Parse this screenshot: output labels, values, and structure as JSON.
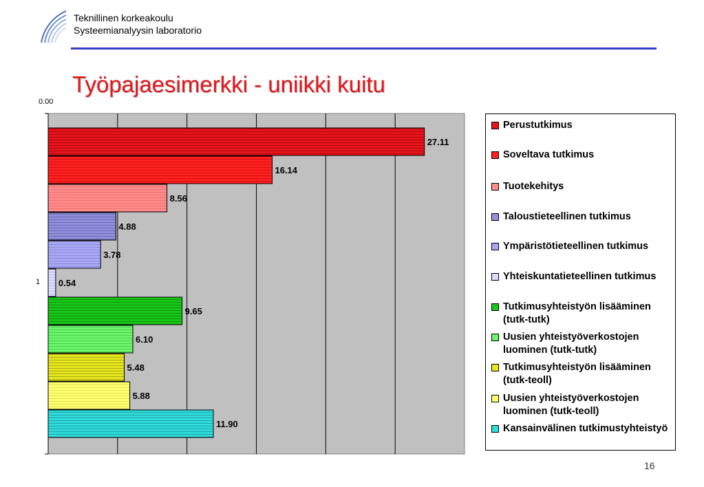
{
  "header": {
    "org_line1": "Teknillinen korkeakoulu",
    "org_line2": "Systeemianalyysin laboratorio"
  },
  "slide": {
    "title": "Työpajaesimerkki - uniikki kuitu",
    "page_number": "16"
  },
  "colors": {
    "title": "#e8161c",
    "rule": "#3a3ac8",
    "plot_background": "#c0c0c0"
  },
  "chart_data": {
    "type": "bar",
    "orientation": "horizontal",
    "title": "",
    "xlabel": "",
    "ylabel": "",
    "value_axis_label": "0.00",
    "category_label": "1",
    "xlim": [
      0,
      30
    ],
    "grid": true,
    "legend_position": "right",
    "categories": [
      "1"
    ],
    "series": [
      {
        "name": "Perustutkimus",
        "values": [
          27.11
        ],
        "label": "27.11",
        "color": "#e8141c",
        "shade": "#7a0008"
      },
      {
        "name": "Soveltava tutkimus",
        "values": [
          16.14
        ],
        "label": "16.14",
        "color": "#ff2020",
        "shade": "#b40808"
      },
      {
        "name": "Tuotekehitys",
        "values": [
          8.56
        ],
        "label": "8.56",
        "color": "#ff8c8c",
        "shade": "#e05858"
      },
      {
        "name": "Taloustieteellinen tutkimus",
        "values": [
          4.88
        ],
        "label": "4.88",
        "color": "#9090dc",
        "shade": "#4a4a92"
      },
      {
        "name": "Ympäristötieteellinen tutkimus",
        "values": [
          3.78
        ],
        "label": "3.78",
        "color": "#a8a8f4",
        "shade": "#7070c4"
      },
      {
        "name": "Yhteiskuntatieteellinen tutkimus",
        "values": [
          0.54
        ],
        "label": "0.54",
        "color": "#dcdcff",
        "shade": "#a8a8dc"
      },
      {
        "name": "Tutkimusyhteistyön lisääminen (tutk-tutk)",
        "values": [
          9.65
        ],
        "label": "9.65",
        "color": "#18c818",
        "shade": "#066006"
      },
      {
        "name": "Uusien yhteistyöverkostojen luominen (tutk-tutk)",
        "values": [
          6.1
        ],
        "label": "6.10",
        "color": "#6cf46c",
        "shade": "#34b434"
      },
      {
        "name": "Tutkimusyhteistyön lisääminen (tutk-teoll)",
        "values": [
          5.48
        ],
        "label": "5.48",
        "color": "#e8e820",
        "shade": "#727206"
      },
      {
        "name": "Uusien yhteistyöverkostojen luominen (tutk-teoll)",
        "values": [
          5.88
        ],
        "label": "5.88",
        "color": "#ffff70",
        "shade": "#c8c838"
      },
      {
        "name": "Kansainvälinen tutkimustyhteistyö",
        "values": [
          11.9
        ],
        "label": "11.90",
        "color": "#30dcdc",
        "shade": "#0a7474"
      }
    ]
  }
}
